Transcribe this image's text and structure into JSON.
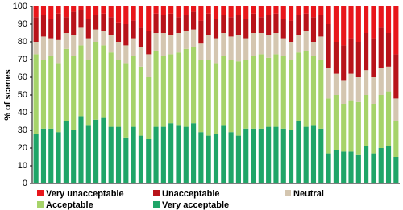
{
  "chart_data": {
    "type": "stacked-bar",
    "y_label": "% of scenes",
    "categories": [
      null,
      null,
      null,
      null,
      null,
      null,
      null,
      null,
      null,
      null,
      null,
      null,
      null,
      null,
      null,
      null,
      null,
      null,
      null,
      null,
      null,
      null,
      null,
      null,
      null,
      null,
      null,
      null,
      null,
      null,
      null,
      null,
      null,
      null,
      null,
      null,
      null,
      null,
      null,
      null,
      null,
      null,
      null,
      null,
      null,
      null,
      null,
      null,
      null
    ],
    "series": [
      {
        "name": "Very unacceptable",
        "color": "#e8161b",
        "values": [
          6,
          5,
          7,
          4,
          6,
          3,
          2,
          7,
          5,
          4,
          6,
          9,
          10,
          8,
          12,
          14,
          4,
          5,
          4,
          6,
          5,
          3,
          8,
          4,
          7,
          5,
          6,
          5,
          7,
          4,
          6,
          5,
          4,
          7,
          8,
          5,
          4,
          6,
          5,
          10,
          20,
          22,
          18,
          20,
          15,
          18,
          12,
          15,
          27
        ]
      },
      {
        "name": "Unacceptable",
        "color": "#b8131a",
        "values": [
          14,
          12,
          11,
          15,
          9,
          13,
          10,
          11,
          8,
          10,
          10,
          11,
          12,
          10,
          11,
          13,
          11,
          10,
          12,
          9,
          9,
          10,
          13,
          12,
          11,
          10,
          11,
          11,
          11,
          11,
          9,
          11,
          11,
          11,
          12,
          11,
          10,
          14,
          12,
          25,
          18,
          20,
          20,
          20,
          21,
          22,
          23,
          19,
          25
        ]
      },
      {
        "name": "Neutral",
        "color": "#d4c6b0",
        "values": [
          7,
          13,
          10,
          13,
          9,
          12,
          10,
          12,
          7,
          8,
          10,
          10,
          10,
          10,
          11,
          13,
          10,
          13,
          11,
          11,
          10,
          10,
          9,
          14,
          14,
          13,
          13,
          15,
          12,
          13,
          12,
          13,
          12,
          10,
          10,
          10,
          11,
          8,
          13,
          17,
          12,
          13,
          15,
          14,
          14,
          15,
          15,
          14,
          13
        ]
      },
      {
        "name": "Acceptable",
        "color": "#a6d36a",
        "values": [
          45,
          39,
          41,
          39,
          41,
          42,
          40,
          37,
          44,
          41,
          42,
          38,
          42,
          40,
          39,
          35,
          43,
          40,
          39,
          41,
          44,
          43,
          41,
          43,
          40,
          39,
          41,
          42,
          39,
          41,
          42,
          39,
          41,
          41,
          40,
          39,
          43,
          39,
          39,
          31,
          31,
          27,
          29,
          30,
          29,
          28,
          30,
          31,
          20
        ]
      },
      {
        "name": "Very acceptable",
        "color": "#1fa568",
        "values": [
          28,
          31,
          31,
          29,
          35,
          30,
          38,
          33,
          36,
          37,
          32,
          32,
          26,
          32,
          27,
          25,
          32,
          32,
          34,
          33,
          32,
          34,
          29,
          27,
          28,
          33,
          29,
          27,
          31,
          31,
          31,
          32,
          32,
          31,
          30,
          35,
          32,
          33,
          31,
          17,
          19,
          18,
          18,
          16,
          21,
          17,
          20,
          21,
          15
        ]
      }
    ],
    "ylim": [
      0,
      100
    ],
    "yticks": [
      0,
      10,
      20,
      30,
      40,
      50,
      60,
      70,
      80,
      90,
      100
    ]
  }
}
